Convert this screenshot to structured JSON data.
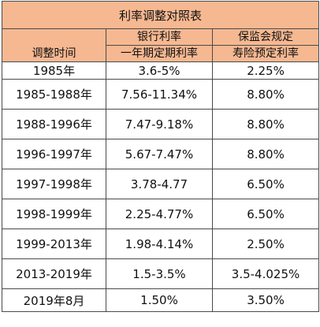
{
  "title": "利率调整对照表",
  "headers": {
    "col1": "调整时间",
    "col2_top": "银行利率",
    "col2_bottom": "一年期定期利率",
    "col3_top": "保监会规定",
    "col3_bottom": "寿险预定利率"
  },
  "rows": [
    {
      "period": "1985年",
      "bank_rate": "3.6-5%",
      "insurance_rate": "2.25%"
    },
    {
      "period": "1985-1988年",
      "bank_rate": "7.56-11.34%",
      "insurance_rate": "8.80%"
    },
    {
      "period": "1988-1996年",
      "bank_rate": "7.47-9.18%",
      "insurance_rate": "8.80%"
    },
    {
      "period": "1996-1997年",
      "bank_rate": "5.67-7.47%",
      "insurance_rate": "8.80%"
    },
    {
      "period": "1997-1998年",
      "bank_rate": "3.78-4.77",
      "insurance_rate": "6.50%"
    },
    {
      "period": "1998-1999年",
      "bank_rate": "2.25-4.77%",
      "insurance_rate": "6.50%"
    },
    {
      "period": "1999-2013年",
      "bank_rate": "1.98-4.14%",
      "insurance_rate": "2.50%"
    },
    {
      "period": "2013-2019年",
      "bank_rate": "1.5-3.5%",
      "insurance_rate": "3.5-4.025%"
    },
    {
      "period": "2019年8月",
      "bank_rate": "1.50%",
      "insurance_rate": "3.50%"
    }
  ],
  "colors": {
    "header_background": "#f6b891",
    "border": "#4a4a4a"
  }
}
